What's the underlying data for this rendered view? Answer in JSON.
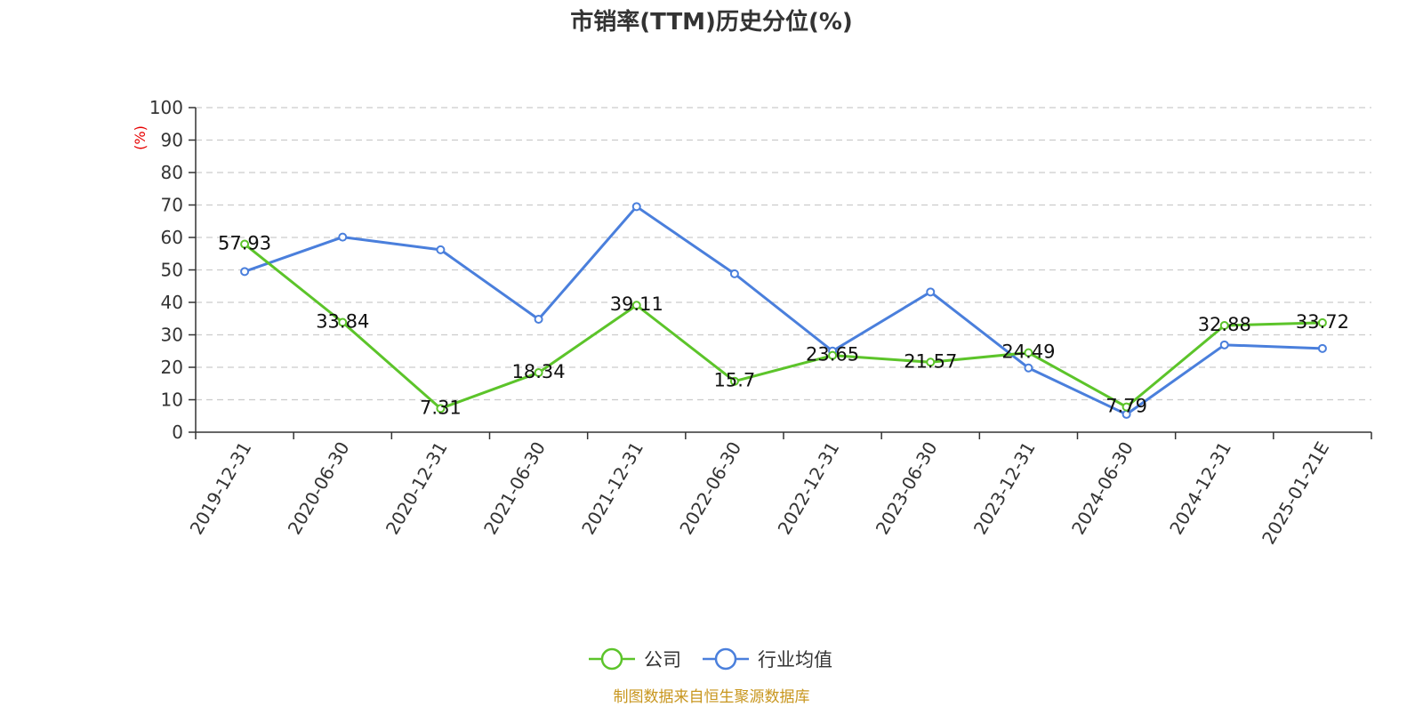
{
  "chart_data": {
    "type": "line",
    "title": "市销率(TTM)历史分位(%)",
    "ylabel": "(%)",
    "ylim": [
      0,
      100
    ],
    "yticks": [
      0,
      10,
      20,
      30,
      40,
      50,
      60,
      70,
      80,
      90,
      100
    ],
    "grid": true,
    "legend_position": "bottom",
    "categories": [
      "2019-12-31",
      "2020-06-30",
      "2020-12-31",
      "2021-06-30",
      "2021-12-31",
      "2022-06-30",
      "2022-12-31",
      "2023-06-30",
      "2023-12-31",
      "2024-06-30",
      "2024-12-31",
      "2025-01-21E"
    ],
    "series": [
      {
        "name": "公司",
        "color": "#5cc42a",
        "values": [
          57.93,
          33.84,
          7.31,
          18.34,
          39.11,
          15.7,
          23.65,
          21.57,
          24.49,
          7.79,
          32.88,
          33.72
        ],
        "labels": [
          "57.93",
          "33.84",
          "7.31",
          "18.34",
          "39.11",
          "15.7",
          "23.65",
          "21.57",
          "24.49",
          "7.79",
          "32.88",
          "33.72"
        ]
      },
      {
        "name": "行业均值",
        "color": "#4a7fdc",
        "values": [
          49.5,
          60.1,
          56.2,
          34.8,
          69.5,
          48.8,
          25.0,
          43.2,
          19.8,
          5.5,
          26.9,
          25.8
        ]
      }
    ],
    "source": "制图数据来自恒生聚源数据库"
  }
}
